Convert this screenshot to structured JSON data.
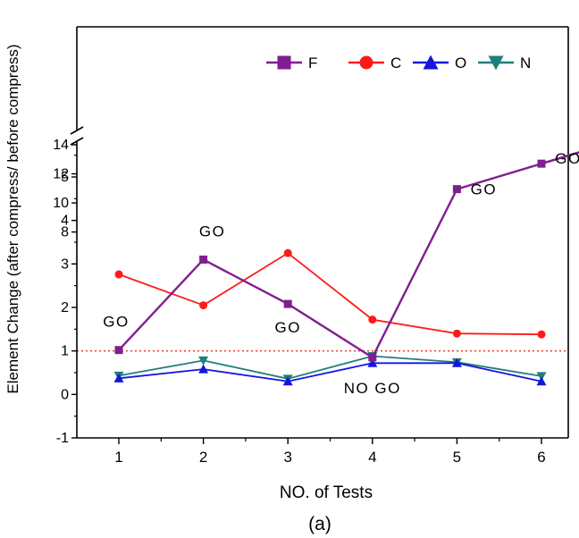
{
  "chart_data": {
    "type": "line",
    "xlabel": "NO. of Tests",
    "ylabel": "Element Change (after compress/ before compress)",
    "caption": "(a)",
    "x": [
      1,
      2,
      3,
      4,
      5,
      6
    ],
    "x_ticks": [
      "1",
      "2",
      "3",
      "4",
      "5",
      "6"
    ],
    "y_axis": {
      "broken": true,
      "lower_range": [
        -1,
        5.8
      ],
      "lower_ticks": [
        "-1",
        "0",
        "1",
        "2",
        "3",
        "4",
        "5"
      ],
      "upper_range": [
        6.5,
        14
      ],
      "upper_ticks": [
        "8",
        "10",
        "12",
        "14"
      ]
    },
    "reference_line": {
      "y": 1,
      "style": "dotted",
      "color": "#e8312b"
    },
    "series": [
      {
        "name": "F",
        "color": "#7f1f8f",
        "marker": "square",
        "values": [
          1.02,
          3.1,
          2.08,
          0.85,
          4.72,
          12.7
        ]
      },
      {
        "name": "C",
        "color": "#ff1a1a",
        "marker": "circle",
        "values": [
          2.76,
          2.05,
          3.25,
          1.72,
          1.4,
          1.38
        ]
      },
      {
        "name": "O",
        "color": "#1515e0",
        "marker": "triangle-up",
        "values": [
          0.37,
          0.58,
          0.3,
          0.72,
          0.72,
          0.3
        ]
      },
      {
        "name": "N",
        "color": "#1f7f7a",
        "marker": "triangle-down",
        "values": [
          0.43,
          0.78,
          0.36,
          0.88,
          0.74,
          0.42
        ]
      }
    ],
    "annotations": [
      {
        "text": "GO",
        "x": 1,
        "y": 1.02
      },
      {
        "text": "GO",
        "x": 2,
        "y": 3.1
      },
      {
        "text": "GO",
        "x": 3,
        "y": 2.08
      },
      {
        "text": "NO GO",
        "x": 4,
        "y": 0.85
      },
      {
        "text": "GO",
        "x": 5,
        "y": 4.72
      },
      {
        "text": "GO",
        "x": 6,
        "y": 12.7
      }
    ],
    "legend": {
      "placement": "top-right",
      "entries": [
        "F",
        "C",
        "O",
        "N"
      ]
    }
  }
}
